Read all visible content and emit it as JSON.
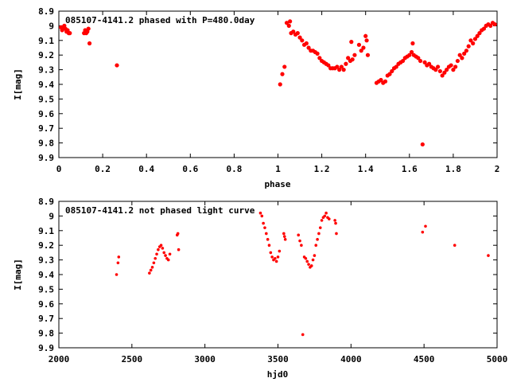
{
  "chart_data": [
    {
      "type": "scatter",
      "title": "085107-4141.2 phased with P=480.0day",
      "xlabel": "phase",
      "ylabel": "I[mag]",
      "xlim": [
        0,
        2
      ],
      "ylim": [
        8.9,
        9.9
      ],
      "y_inverted": true,
      "x_ticks": [
        "0",
        "0.2",
        "0.4",
        "0.6",
        "0.8",
        "1",
        "1.2",
        "1.4",
        "1.6",
        "1.8",
        "2"
      ],
      "y_ticks": [
        "8.9",
        "9",
        "9.1",
        "9.2",
        "9.3",
        "9.4",
        "9.5",
        "9.6",
        "9.7",
        "9.8",
        "9.9"
      ],
      "marker_color": "#ff0000",
      "series": [
        {
          "points": [
            [
              0.01,
              9.01
            ],
            [
              0.015,
              9.03
            ],
            [
              0.02,
              9.02
            ],
            [
              0.025,
              9.0
            ],
            [
              0.03,
              9.02
            ],
            [
              0.035,
              9.04
            ],
            [
              0.04,
              9.03
            ],
            [
              0.045,
              9.05
            ],
            [
              0.05,
              9.05
            ],
            [
              0.115,
              9.05
            ],
            [
              0.12,
              9.03
            ],
            [
              0.125,
              9.05
            ],
            [
              0.13,
              9.04
            ],
            [
              0.135,
              9.02
            ],
            [
              0.14,
              9.12
            ],
            [
              0.265,
              9.27
            ],
            [
              1.01,
              9.4
            ],
            [
              1.02,
              9.33
            ],
            [
              1.03,
              9.28
            ],
            [
              1.04,
              8.98
            ],
            [
              1.05,
              9.0
            ],
            [
              1.055,
              8.97
            ],
            [
              1.06,
              9.05
            ],
            [
              1.07,
              9.04
            ],
            [
              1.08,
              9.06
            ],
            [
              1.09,
              9.05
            ],
            [
              1.1,
              9.08
            ],
            [
              1.11,
              9.1
            ],
            [
              1.12,
              9.13
            ],
            [
              1.13,
              9.12
            ],
            [
              1.14,
              9.15
            ],
            [
              1.15,
              9.17
            ],
            [
              1.16,
              9.17
            ],
            [
              1.17,
              9.18
            ],
            [
              1.18,
              9.19
            ],
            [
              1.19,
              9.22
            ],
            [
              1.2,
              9.24
            ],
            [
              1.21,
              9.25
            ],
            [
              1.22,
              9.26
            ],
            [
              1.23,
              9.27
            ],
            [
              1.24,
              9.29
            ],
            [
              1.25,
              9.29
            ],
            [
              1.26,
              9.29
            ],
            [
              1.27,
              9.28
            ],
            [
              1.28,
              9.3
            ],
            [
              1.29,
              9.28
            ],
            [
              1.3,
              9.3
            ],
            [
              1.31,
              9.26
            ],
            [
              1.32,
              9.22
            ],
            [
              1.33,
              9.24
            ],
            [
              1.34,
              9.23
            ],
            [
              1.335,
              9.11
            ],
            [
              1.35,
              9.2
            ],
            [
              1.37,
              9.13
            ],
            [
              1.38,
              9.17
            ],
            [
              1.39,
              9.15
            ],
            [
              1.4,
              9.07
            ],
            [
              1.405,
              9.1
            ],
            [
              1.41,
              9.2
            ],
            [
              1.45,
              9.39
            ],
            [
              1.46,
              9.38
            ],
            [
              1.47,
              9.37
            ],
            [
              1.48,
              9.39
            ],
            [
              1.49,
              9.38
            ],
            [
              1.5,
              9.34
            ],
            [
              1.51,
              9.33
            ],
            [
              1.52,
              9.31
            ],
            [
              1.53,
              9.29
            ],
            [
              1.54,
              9.28
            ],
            [
              1.55,
              9.26
            ],
            [
              1.56,
              9.25
            ],
            [
              1.57,
              9.24
            ],
            [
              1.58,
              9.22
            ],
            [
              1.59,
              9.21
            ],
            [
              1.6,
              9.2
            ],
            [
              1.61,
              9.18
            ],
            [
              1.615,
              9.12
            ],
            [
              1.62,
              9.2
            ],
            [
              1.63,
              9.21
            ],
            [
              1.64,
              9.22
            ],
            [
              1.65,
              9.24
            ],
            [
              1.66,
              9.81
            ],
            [
              1.67,
              9.25
            ],
            [
              1.68,
              9.27
            ],
            [
              1.69,
              9.26
            ],
            [
              1.7,
              9.28
            ],
            [
              1.71,
              9.29
            ],
            [
              1.72,
              9.3
            ],
            [
              1.73,
              9.28
            ],
            [
              1.74,
              9.31
            ],
            [
              1.75,
              9.34
            ],
            [
              1.76,
              9.32
            ],
            [
              1.77,
              9.3
            ],
            [
              1.78,
              9.28
            ],
            [
              1.79,
              9.27
            ],
            [
              1.8,
              9.3
            ],
            [
              1.81,
              9.28
            ],
            [
              1.82,
              9.24
            ],
            [
              1.83,
              9.2
            ],
            [
              1.84,
              9.22
            ],
            [
              1.85,
              9.19
            ],
            [
              1.86,
              9.17
            ],
            [
              1.87,
              9.14
            ],
            [
              1.88,
              9.1
            ],
            [
              1.89,
              9.12
            ],
            [
              1.9,
              9.09
            ],
            [
              1.91,
              9.07
            ],
            [
              1.92,
              9.05
            ],
            [
              1.93,
              9.03
            ],
            [
              1.94,
              9.02
            ],
            [
              1.95,
              9.0
            ],
            [
              1.96,
              8.99
            ],
            [
              1.97,
              9.0
            ],
            [
              1.98,
              8.98
            ],
            [
              1.99,
              8.99
            ]
          ]
        }
      ]
    },
    {
      "type": "scatter",
      "title": "085107-4141.2 not phased light curve",
      "xlabel": "hjd0",
      "ylabel": "I[mag]",
      "xlim": [
        2000,
        5000
      ],
      "ylim": [
        8.9,
        9.9
      ],
      "y_inverted": true,
      "x_ticks": [
        "2000",
        "2500",
        "3000",
        "3500",
        "4000",
        "4500",
        "5000"
      ],
      "y_ticks": [
        "8.9",
        "9",
        "9.1",
        "9.2",
        "9.3",
        "9.4",
        "9.5",
        "9.6",
        "9.7",
        "9.8",
        "9.9"
      ],
      "marker_color": "#ff0000",
      "series": [
        {
          "points": [
            [
              2395,
              9.4
            ],
            [
              2405,
              9.32
            ],
            [
              2410,
              9.28
            ],
            [
              2620,
              9.39
            ],
            [
              2630,
              9.37
            ],
            [
              2640,
              9.35
            ],
            [
              2650,
              9.32
            ],
            [
              2660,
              9.29
            ],
            [
              2670,
              9.26
            ],
            [
              2680,
              9.23
            ],
            [
              2690,
              9.21
            ],
            [
              2700,
              9.2
            ],
            [
              2710,
              9.22
            ],
            [
              2720,
              9.25
            ],
            [
              2730,
              9.27
            ],
            [
              2740,
              9.29
            ],
            [
              2750,
              9.3
            ],
            [
              2760,
              9.26
            ],
            [
              2810,
              9.13
            ],
            [
              2815,
              9.12
            ],
            [
              2820,
              9.23
            ],
            [
              3380,
              8.98
            ],
            [
              3390,
              9.0
            ],
            [
              3400,
              9.05
            ],
            [
              3410,
              9.08
            ],
            [
              3420,
              9.12
            ],
            [
              3430,
              9.16
            ],
            [
              3440,
              9.2
            ],
            [
              3450,
              9.25
            ],
            [
              3460,
              9.28
            ],
            [
              3470,
              9.3
            ],
            [
              3480,
              9.29
            ],
            [
              3490,
              9.31
            ],
            [
              3500,
              9.28
            ],
            [
              3510,
              9.24
            ],
            [
              3540,
              9.12
            ],
            [
              3545,
              9.14
            ],
            [
              3550,
              9.16
            ],
            [
              3640,
              9.13
            ],
            [
              3650,
              9.17
            ],
            [
              3660,
              9.2
            ],
            [
              3670,
              9.81
            ],
            [
              3680,
              9.28
            ],
            [
              3690,
              9.29
            ],
            [
              3700,
              9.31
            ],
            [
              3710,
              9.33
            ],
            [
              3720,
              9.35
            ],
            [
              3730,
              9.34
            ],
            [
              3740,
              9.3
            ],
            [
              3750,
              9.27
            ],
            [
              3760,
              9.2
            ],
            [
              3770,
              9.16
            ],
            [
              3780,
              9.12
            ],
            [
              3790,
              9.08
            ],
            [
              3800,
              9.03
            ],
            [
              3810,
              9.01
            ],
            [
              3820,
              9.0
            ],
            [
              3830,
              8.98
            ],
            [
              3840,
              9.01
            ],
            [
              3850,
              9.02
            ],
            [
              3890,
              9.03
            ],
            [
              3895,
              9.05
            ],
            [
              3900,
              9.12
            ],
            [
              4490,
              9.11
            ],
            [
              4510,
              9.07
            ],
            [
              4710,
              9.2
            ],
            [
              4940,
              9.27
            ]
          ]
        }
      ]
    }
  ]
}
